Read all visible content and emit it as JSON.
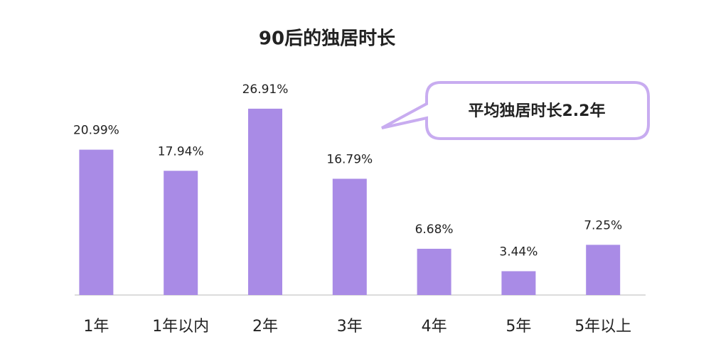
{
  "chart_data": {
    "type": "bar",
    "title": "90后的独居时长",
    "categories": [
      "1年",
      "1年以内",
      "2年",
      "3年",
      "4年",
      "5年",
      "5年以上"
    ],
    "values": [
      20.99,
      17.94,
      26.91,
      16.79,
      6.68,
      3.44,
      7.25
    ],
    "value_labels": [
      "20.99%",
      "17.94%",
      "26.91%",
      "16.79%",
      "6.68%",
      "3.44%",
      "7.25%"
    ],
    "color": "#a98be6",
    "annotation": "平均独居时长2.2年"
  }
}
